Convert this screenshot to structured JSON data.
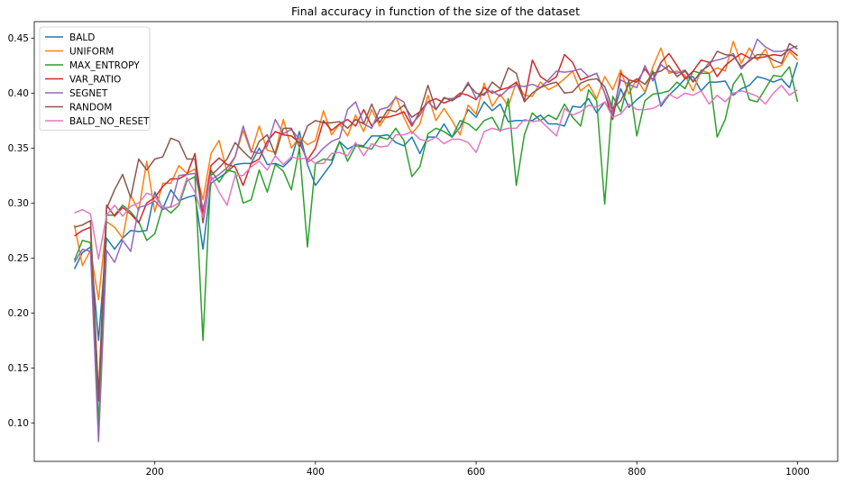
{
  "chart_data": {
    "type": "line",
    "title": "Final accuracy in function of the size of the dataset",
    "xlabel": "",
    "ylabel": "",
    "xlim": [
      50,
      1050
    ],
    "ylim": [
      0.065,
      0.465
    ],
    "xticks": [
      200,
      400,
      600,
      800,
      1000
    ],
    "yticks": [
      0.1,
      0.15,
      0.2,
      0.25,
      0.3,
      0.35,
      0.4,
      0.45
    ],
    "legend_position": "top-left",
    "grid": false,
    "x": [
      100,
      110,
      120,
      130,
      140,
      150,
      160,
      170,
      180,
      190,
      200,
      210,
      220,
      230,
      240,
      250,
      260,
      270,
      280,
      290,
      300,
      310,
      320,
      330,
      340,
      350,
      360,
      370,
      380,
      390,
      400,
      410,
      420,
      430,
      440,
      450,
      460,
      470,
      480,
      490,
      500,
      510,
      520,
      530,
      540,
      550,
      560,
      570,
      580,
      590,
      600,
      610,
      620,
      630,
      640,
      650,
      660,
      670,
      680,
      690,
      700,
      710,
      720,
      730,
      740,
      750,
      760,
      770,
      780,
      790,
      800,
      810,
      820,
      830,
      840,
      850,
      860,
      870,
      880,
      890,
      900,
      910,
      920,
      930,
      940,
      950,
      960,
      970,
      980,
      990,
      1000
    ],
    "series": [
      {
        "name": "BALD",
        "color": "#1f77b4",
        "values": [
          0.24,
          0.255,
          0.26,
          0.175,
          0.268,
          0.258,
          0.268,
          0.275,
          0.274,
          0.275,
          0.31,
          0.295,
          0.312,
          0.302,
          0.305,
          0.307,
          0.258,
          0.318,
          0.323,
          0.328,
          0.335,
          0.336,
          0.336,
          0.35,
          0.335,
          0.336,
          0.333,
          0.34,
          0.365,
          0.335,
          0.316,
          0.326,
          0.336,
          0.356,
          0.349,
          0.353,
          0.352,
          0.361,
          0.361,
          0.362,
          0.355,
          0.352,
          0.36,
          0.345,
          0.36,
          0.36,
          0.372,
          0.36,
          0.369,
          0.385,
          0.378,
          0.392,
          0.384,
          0.39,
          0.374,
          0.375,
          0.375,
          0.375,
          0.38,
          0.372,
          0.372,
          0.37,
          0.388,
          0.387,
          0.395,
          0.382,
          0.392,
          0.38,
          0.404,
          0.387,
          0.394,
          0.4,
          0.42,
          0.388,
          0.398,
          0.405,
          0.413,
          0.415,
          0.402,
          0.41,
          0.41,
          0.411,
          0.398,
          0.404,
          0.407,
          0.415,
          0.413,
          0.41,
          0.413,
          0.405,
          0.428
        ]
      },
      {
        "name": "UNIFORM",
        "color": "#ff7f0e",
        "values": [
          0.28,
          0.243,
          0.257,
          0.212,
          0.283,
          0.278,
          0.268,
          0.307,
          0.293,
          0.338,
          0.292,
          0.318,
          0.318,
          0.334,
          0.327,
          0.331,
          0.303,
          0.345,
          0.357,
          0.328,
          0.342,
          0.366,
          0.346,
          0.37,
          0.348,
          0.346,
          0.376,
          0.35,
          0.36,
          0.353,
          0.357,
          0.384,
          0.362,
          0.372,
          0.361,
          0.38,
          0.365,
          0.385,
          0.37,
          0.381,
          0.397,
          0.378,
          0.363,
          0.372,
          0.398,
          0.375,
          0.386,
          0.375,
          0.362,
          0.389,
          0.381,
          0.409,
          0.388,
          0.399,
          0.388,
          0.41,
          0.398,
          0.397,
          0.41,
          0.403,
          0.407,
          0.413,
          0.42,
          0.402,
          0.408,
          0.395,
          0.415,
          0.403,
          0.421,
          0.399,
          0.413,
          0.401,
          0.424,
          0.441,
          0.418,
          0.42,
          0.416,
          0.402,
          0.421,
          0.418,
          0.423,
          0.42,
          0.447,
          0.427,
          0.441,
          0.43,
          0.44,
          0.423,
          0.425,
          0.438,
          0.43
        ]
      },
      {
        "name": "MAX_ENTROPY",
        "color": "#2ca02c",
        "values": [
          0.248,
          0.266,
          0.264,
          0.098,
          0.289,
          0.289,
          0.298,
          0.292,
          0.283,
          0.266,
          0.272,
          0.297,
          0.291,
          0.298,
          0.32,
          0.324,
          0.175,
          0.33,
          0.319,
          0.33,
          0.328,
          0.3,
          0.303,
          0.33,
          0.31,
          0.335,
          0.329,
          0.312,
          0.35,
          0.26,
          0.336,
          0.34,
          0.339,
          0.356,
          0.338,
          0.352,
          0.351,
          0.349,
          0.36,
          0.358,
          0.368,
          0.357,
          0.324,
          0.333,
          0.363,
          0.368,
          0.365,
          0.36,
          0.375,
          0.372,
          0.366,
          0.375,
          0.378,
          0.365,
          0.395,
          0.316,
          0.362,
          0.382,
          0.375,
          0.38,
          0.376,
          0.39,
          0.378,
          0.37,
          0.403,
          0.393,
          0.299,
          0.397,
          0.383,
          0.412,
          0.361,
          0.393,
          0.399,
          0.4,
          0.402,
          0.41,
          0.404,
          0.42,
          0.418,
          0.418,
          0.36,
          0.376,
          0.408,
          0.418,
          0.394,
          0.392,
          0.404,
          0.416,
          0.415,
          0.424,
          0.392
        ]
      },
      {
        "name": "VAR_RATIO",
        "color": "#d62728",
        "values": [
          0.27,
          0.275,
          0.278,
          0.125,
          0.298,
          0.288,
          0.296,
          0.29,
          0.282,
          0.3,
          0.305,
          0.315,
          0.322,
          0.322,
          0.326,
          0.345,
          0.29,
          0.334,
          0.341,
          0.335,
          0.333,
          0.316,
          0.336,
          0.34,
          0.356,
          0.365,
          0.362,
          0.361,
          0.355,
          0.339,
          0.35,
          0.375,
          0.366,
          0.372,
          0.376,
          0.37,
          0.385,
          0.37,
          0.378,
          0.378,
          0.38,
          0.383,
          0.37,
          0.383,
          0.392,
          0.395,
          0.391,
          0.394,
          0.4,
          0.398,
          0.394,
          0.405,
          0.4,
          0.403,
          0.405,
          0.41,
          0.393,
          0.43,
          0.415,
          0.41,
          0.415,
          0.435,
          0.428,
          0.412,
          0.415,
          0.418,
          0.4,
          0.376,
          0.418,
          0.412,
          0.41,
          0.422,
          0.412,
          0.428,
          0.436,
          0.425,
          0.413,
          0.42,
          0.43,
          0.428,
          0.415,
          0.425,
          0.431,
          0.436,
          0.432,
          0.432,
          0.433,
          0.435,
          0.434,
          0.44,
          0.434
        ]
      },
      {
        "name": "SEGNET",
        "color": "#9467bd",
        "values": [
          0.246,
          0.258,
          0.256,
          0.083,
          0.257,
          0.246,
          0.266,
          0.256,
          0.296,
          0.298,
          0.302,
          0.294,
          0.297,
          0.325,
          0.326,
          0.327,
          0.295,
          0.321,
          0.326,
          0.332,
          0.342,
          0.37,
          0.347,
          0.345,
          0.352,
          0.376,
          0.363,
          0.367,
          0.358,
          0.337,
          0.342,
          0.35,
          0.356,
          0.359,
          0.385,
          0.392,
          0.372,
          0.368,
          0.385,
          0.387,
          0.396,
          0.392,
          0.372,
          0.38,
          0.392,
          0.385,
          0.395,
          0.395,
          0.397,
          0.41,
          0.395,
          0.4,
          0.402,
          0.397,
          0.404,
          0.407,
          0.406,
          0.408,
          0.405,
          0.412,
          0.42,
          0.419,
          0.42,
          0.422,
          0.415,
          0.418,
          0.4,
          0.383,
          0.412,
          0.408,
          0.405,
          0.425,
          0.411,
          0.426,
          0.42,
          0.418,
          0.421,
          0.411,
          0.418,
          0.428,
          0.43,
          0.432,
          0.436,
          0.422,
          0.43,
          0.449,
          0.442,
          0.438,
          0.438,
          0.44,
          0.443
        ]
      },
      {
        "name": "RANDOM",
        "color": "#8c564b",
        "values": [
          0.278,
          0.28,
          0.284,
          0.12,
          0.295,
          0.312,
          0.326,
          0.305,
          0.34,
          0.33,
          0.34,
          0.342,
          0.359,
          0.356,
          0.34,
          0.34,
          0.282,
          0.325,
          0.332,
          0.34,
          0.355,
          0.347,
          0.34,
          0.356,
          0.362,
          0.344,
          0.368,
          0.368,
          0.351,
          0.37,
          0.375,
          0.373,
          0.373,
          0.374,
          0.368,
          0.376,
          0.372,
          0.39,
          0.373,
          0.385,
          0.383,
          0.389,
          0.378,
          0.383,
          0.407,
          0.385,
          0.396,
          0.393,
          0.398,
          0.408,
          0.4,
          0.398,
          0.41,
          0.404,
          0.423,
          0.418,
          0.392,
          0.4,
          0.405,
          0.408,
          0.41,
          0.4,
          0.401,
          0.409,
          0.412,
          0.413,
          0.406,
          0.386,
          0.393,
          0.408,
          0.413,
          0.408,
          0.418,
          0.42,
          0.425,
          0.415,
          0.42,
          0.41,
          0.42,
          0.425,
          0.438,
          0.435,
          0.434,
          0.424,
          0.429,
          0.435,
          0.435,
          0.43,
          0.427,
          0.445,
          0.44
        ]
      },
      {
        "name": "BALD_NO_RESET",
        "color": "#e377c2",
        "values": [
          0.291,
          0.294,
          0.29,
          0.249,
          0.289,
          0.298,
          0.288,
          0.297,
          0.3,
          0.309,
          0.306,
          0.296,
          0.296,
          0.3,
          0.323,
          0.31,
          0.287,
          0.325,
          0.31,
          0.298,
          0.325,
          0.325,
          0.333,
          0.338,
          0.33,
          0.343,
          0.335,
          0.342,
          0.34,
          0.341,
          0.336,
          0.336,
          0.345,
          0.346,
          0.343,
          0.355,
          0.343,
          0.354,
          0.351,
          0.352,
          0.362,
          0.362,
          0.365,
          0.358,
          0.356,
          0.36,
          0.354,
          0.358,
          0.358,
          0.355,
          0.346,
          0.365,
          0.368,
          0.366,
          0.368,
          0.368,
          0.376,
          0.374,
          0.375,
          0.368,
          0.361,
          0.386,
          0.38,
          0.383,
          0.389,
          0.387,
          0.392,
          0.378,
          0.381,
          0.39,
          0.385,
          0.385,
          0.386,
          0.39,
          0.399,
          0.395,
          0.4,
          0.398,
          0.402,
          0.39,
          0.398,
          0.392,
          0.4,
          0.402,
          0.4,
          0.397,
          0.39,
          0.4,
          0.407,
          0.398,
          0.403
        ]
      }
    ]
  }
}
